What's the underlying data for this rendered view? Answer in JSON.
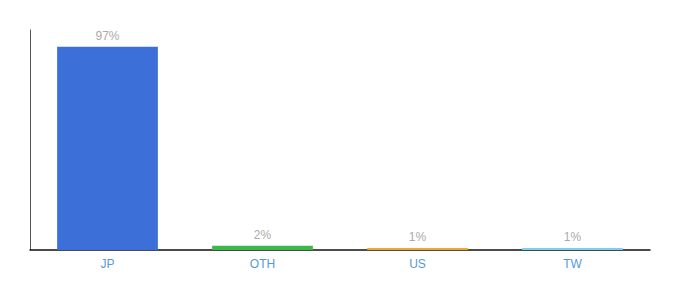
{
  "chart_data": {
    "type": "bar",
    "categories": [
      "JP",
      "OTH",
      "US",
      "TW"
    ],
    "values": [
      97,
      2,
      1,
      1
    ],
    "value_labels": [
      "97%",
      "2%",
      "1%",
      "1%"
    ],
    "colors": [
      "#3d6fd9",
      "#3cb84a",
      "#f0a830",
      "#7ecfef"
    ],
    "ylim": [
      0,
      105
    ],
    "data_labels": true,
    "tick_labels": "x",
    "grid": false
  }
}
